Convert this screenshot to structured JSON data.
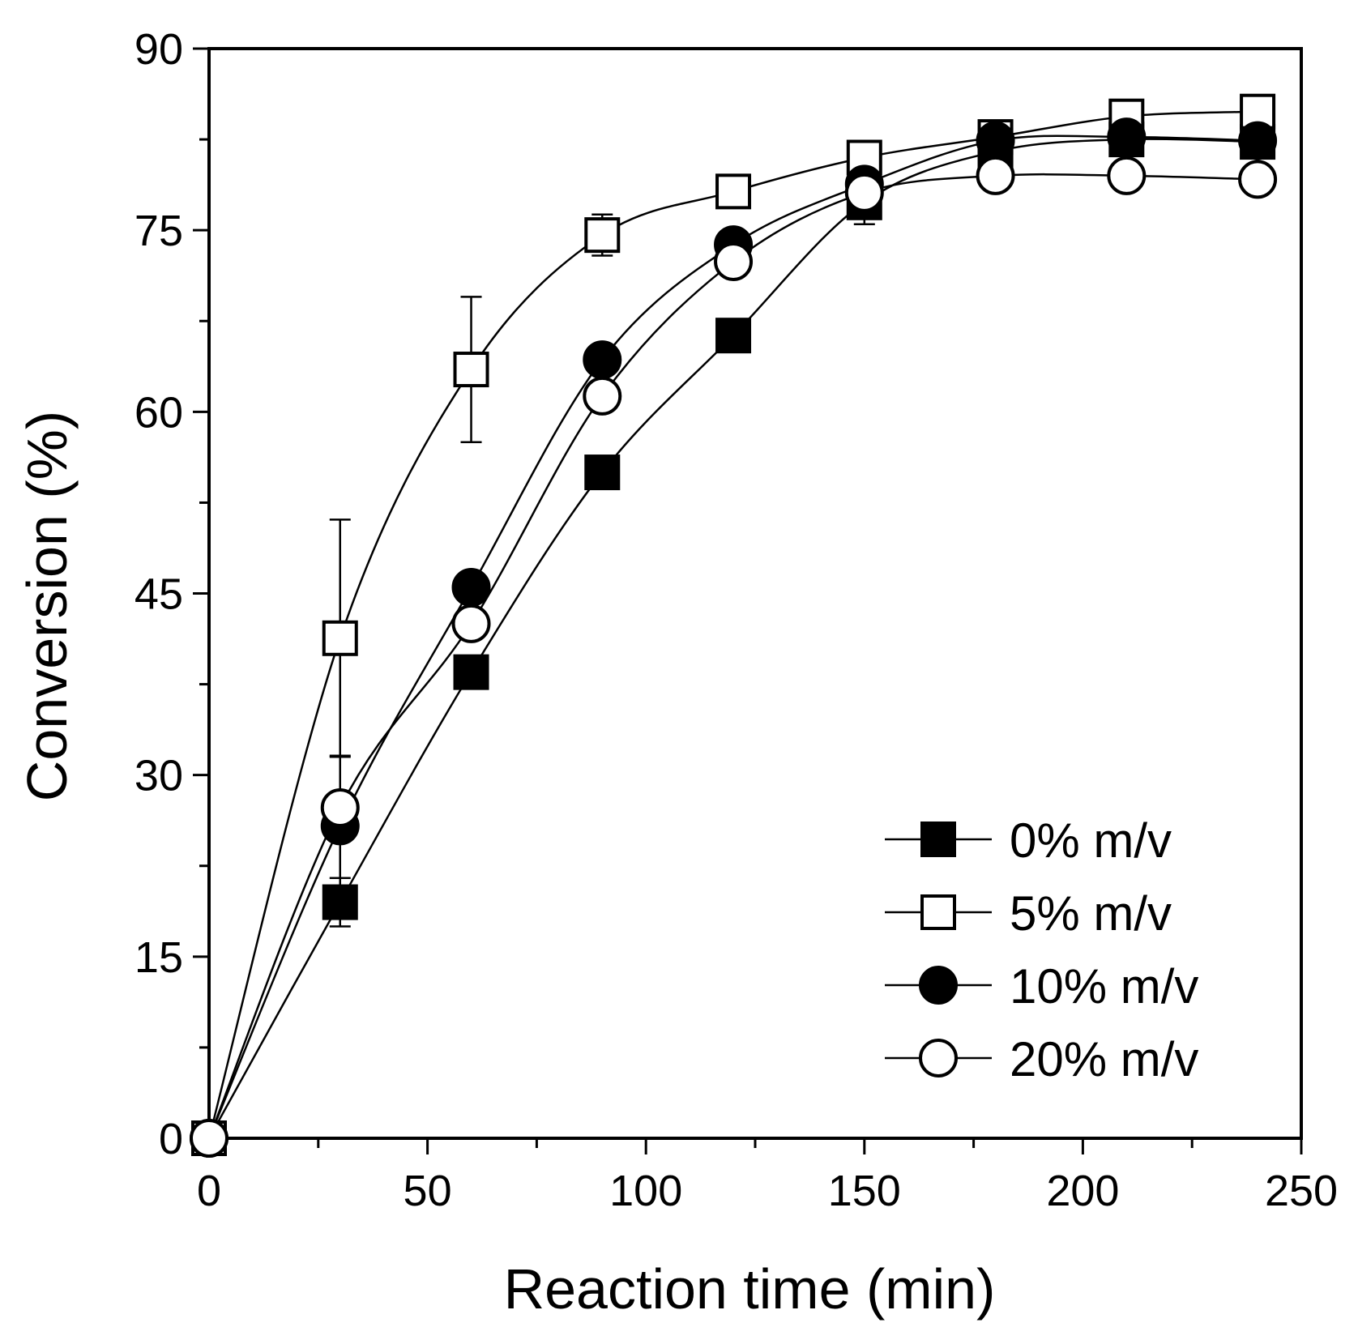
{
  "chart_data": {
    "type": "line",
    "title": "",
    "xlabel": "Reaction time (min)",
    "ylabel": "Conversion (%)",
    "xlim": [
      0,
      250
    ],
    "ylim": [
      0,
      90
    ],
    "x_ticks": [
      0,
      50,
      100,
      150,
      200,
      250
    ],
    "x_tick_labels": [
      "0",
      "50",
      "100",
      "150",
      "200",
      "250"
    ],
    "y_ticks": [
      0,
      15,
      30,
      45,
      60,
      75,
      90
    ],
    "y_tick_labels": [
      "0",
      "15",
      "30",
      "45",
      "60",
      "75",
      "90"
    ],
    "grid": false,
    "legend_position": "bottom-right",
    "series": [
      {
        "name": "0% m/v",
        "marker": "filled-square",
        "x": [
          0,
          30,
          60,
          90,
          120,
          150,
          180,
          210,
          240
        ],
        "y": [
          0,
          19.5,
          38.5,
          55.0,
          66.3,
          77.3,
          81.5,
          82.5,
          82.3
        ],
        "err": [
          0,
          2.0,
          0,
          0,
          0,
          1.8,
          0,
          0,
          0
        ]
      },
      {
        "name": "5% m/v",
        "marker": "open-square",
        "x": [
          0,
          30,
          60,
          90,
          120,
          150,
          180,
          210,
          240
        ],
        "y": [
          0,
          41.3,
          63.5,
          74.6,
          78.2,
          81.0,
          82.7,
          84.4,
          84.8
        ],
        "err": [
          0,
          9.8,
          6.0,
          1.7,
          1.2,
          1.3,
          0.8,
          0,
          0.9
        ]
      },
      {
        "name": "10% m/v",
        "marker": "filled-circle",
        "x": [
          0,
          30,
          60,
          90,
          120,
          150,
          180,
          210,
          240
        ],
        "y": [
          0,
          25.8,
          45.5,
          64.3,
          73.8,
          78.8,
          82.4,
          82.7,
          82.4
        ],
        "err": [
          0,
          5.8,
          0,
          0,
          0,
          0,
          0,
          0,
          0
        ]
      },
      {
        "name": "20% m/v",
        "marker": "open-circle",
        "x": [
          0,
          30,
          60,
          90,
          120,
          150,
          180,
          210,
          240
        ],
        "y": [
          0,
          27.3,
          42.5,
          61.3,
          72.4,
          78.1,
          79.5,
          79.5,
          79.2
        ],
        "err": [
          0,
          1.0,
          0.8,
          0.9,
          0.6,
          0.8,
          0.6,
          0.6,
          0.6
        ]
      }
    ]
  }
}
